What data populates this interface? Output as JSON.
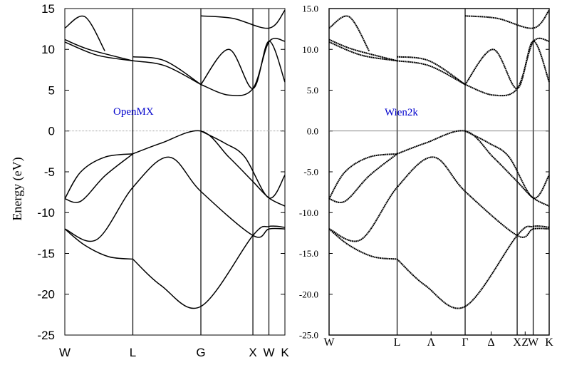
{
  "chart_data": [
    {
      "type": "line",
      "panel": "left",
      "title": "",
      "annotation": "OpenMX",
      "annotation_color": "#0000cc",
      "ylabel": "Energy (eV)",
      "xlabel": "",
      "ylim": [
        -25,
        15
      ],
      "yticks": [
        15,
        10,
        5,
        0,
        -5,
        -10,
        -15,
        -20,
        -25
      ],
      "ytick_labels": [
        "15",
        "10",
        "5",
        "0",
        "-5",
        "-10",
        "-15",
        "-20",
        "-25"
      ],
      "kpoints": [
        "W",
        "L",
        "G",
        "X",
        "W",
        "K"
      ],
      "fermi_level": 0,
      "grid": false,
      "series": [
        {
          "x": [
            0,
            0.8,
            1.7,
            2.6,
            3.4,
            4.7,
            5.1,
            5.5
          ],
          "values": [
            -12.0,
            -13.3,
            -6.9,
            -3.2,
            -7.4,
            -12.8,
            -12.0,
            -12.0
          ]
        },
        {
          "x": [
            0,
            0.5,
            1.1,
            1.7
          ],
          "values": [
            -12.0,
            -14.0,
            -15.4,
            -15.7
          ]
        },
        {
          "x": [
            1.7,
            2.4,
            3.4,
            4.7,
            5.1,
            5.5
          ],
          "values": [
            -15.7,
            -18.9,
            -21.5,
            -12.8,
            -11.7,
            -11.8
          ]
        },
        {
          "x": [
            0,
            0.4,
            1.0,
            1.7
          ],
          "values": [
            -8.3,
            -5.0,
            -3.2,
            -2.8
          ]
        },
        {
          "x": [
            0,
            0.4,
            1.0,
            1.7
          ],
          "values": [
            -8.3,
            -8.6,
            -5.5,
            -2.8
          ]
        },
        {
          "x": [
            1.7,
            2.4,
            3.4,
            4.1,
            4.7,
            5.1,
            5.5
          ],
          "values": [
            -2.8,
            -1.5,
            0.0,
            -3.2,
            -6.2,
            -8.2,
            -9.2
          ]
        },
        {
          "x": [
            3.4,
            4.0,
            4.5,
            5.1,
            5.5
          ],
          "values": [
            0.0,
            -1.5,
            -3.2,
            -8.2,
            -5.4
          ]
        },
        {
          "x": [
            0,
            0.6,
            1.7
          ],
          "values": [
            11.2,
            10.0,
            8.6
          ]
        },
        {
          "x": [
            0,
            0.8,
            1.7
          ],
          "values": [
            10.9,
            9.3,
            8.6
          ]
        },
        {
          "x": [
            1.7,
            2.5,
            3.4
          ],
          "values": [
            8.6,
            8.0,
            5.7
          ]
        },
        {
          "x": [
            1.7,
            2.5,
            3.4
          ],
          "values": [
            9.1,
            8.6,
            5.7
          ]
        },
        {
          "x": [
            3.4,
            4.1,
            4.7,
            5.1,
            5.5
          ],
          "values": [
            5.7,
            4.4,
            5.2,
            10.9,
            11.0
          ]
        },
        {
          "x": [
            3.4,
            4.1,
            4.7,
            5.1,
            5.5
          ],
          "values": [
            5.7,
            10.0,
            5.2,
            11.0,
            6.0
          ]
        },
        {
          "x": [
            0,
            0.5,
            1.0
          ],
          "values": [
            12.6,
            14.0,
            9.8
          ]
        },
        {
          "x": [
            3.4,
            4.2,
            5.1,
            5.5
          ],
          "values": [
            14.1,
            13.8,
            12.6,
            14.8
          ]
        }
      ]
    },
    {
      "type": "line",
      "panel": "right",
      "title": "",
      "annotation": "Wien2k",
      "annotation_color": "#0000cc",
      "ylabel": "",
      "xlabel": "",
      "ylim": [
        -25,
        15
      ],
      "yticks": [
        15,
        10,
        5,
        0,
        -5,
        -10,
        -15,
        -20,
        -25
      ],
      "ytick_labels": [
        "15.0",
        "10.0",
        "5.0",
        "0.0",
        "-5.0",
        "-10.0",
        "-15.0",
        "-20.0",
        "-25.0"
      ],
      "kpoints": [
        "W",
        "L",
        "Λ",
        "Γ",
        "Δ",
        "X",
        "Z",
        "W",
        "K"
      ],
      "fermi_level": 0,
      "grid": false,
      "series": [
        {
          "x": [
            0,
            0.8,
            1.7,
            2.6,
            3.4,
            4.7,
            5.1,
            5.5
          ],
          "values": [
            -12.0,
            -13.3,
            -6.9,
            -3.2,
            -7.4,
            -12.8,
            -12.0,
            -12.0
          ]
        },
        {
          "x": [
            0,
            0.5,
            1.1,
            1.7
          ],
          "values": [
            -12.0,
            -14.0,
            -15.4,
            -15.7
          ]
        },
        {
          "x": [
            1.7,
            2.4,
            3.4,
            4.7,
            5.1,
            5.5
          ],
          "values": [
            -15.7,
            -18.9,
            -21.5,
            -12.8,
            -11.7,
            -11.8
          ]
        },
        {
          "x": [
            0,
            0.4,
            1.0,
            1.7
          ],
          "values": [
            -8.3,
            -5.0,
            -3.2,
            -2.8
          ]
        },
        {
          "x": [
            0,
            0.4,
            1.0,
            1.7
          ],
          "values": [
            -8.3,
            -8.6,
            -5.5,
            -2.8
          ]
        },
        {
          "x": [
            1.7,
            2.4,
            3.4,
            4.1,
            4.7,
            5.1,
            5.5
          ],
          "values": [
            -2.8,
            -1.5,
            0.0,
            -3.2,
            -6.2,
            -8.2,
            -9.2
          ]
        },
        {
          "x": [
            3.4,
            4.0,
            4.5,
            5.1,
            5.5
          ],
          "values": [
            0.0,
            -1.5,
            -3.2,
            -8.2,
            -5.4
          ]
        },
        {
          "x": [
            0,
            0.6,
            1.7
          ],
          "values": [
            11.2,
            10.0,
            8.6
          ]
        },
        {
          "x": [
            0,
            0.8,
            1.7
          ],
          "values": [
            10.9,
            9.3,
            8.6
          ]
        },
        {
          "x": [
            1.7,
            2.5,
            3.4
          ],
          "values": [
            8.6,
            8.0,
            5.7
          ]
        },
        {
          "x": [
            1.7,
            2.5,
            3.4
          ],
          "values": [
            9.1,
            8.6,
            5.7
          ]
        },
        {
          "x": [
            3.4,
            4.1,
            4.7,
            5.1,
            5.5
          ],
          "values": [
            5.7,
            4.4,
            5.2,
            10.9,
            11.0
          ]
        },
        {
          "x": [
            3.4,
            4.1,
            4.7,
            5.1,
            5.5
          ],
          "values": [
            5.7,
            10.0,
            5.2,
            11.0,
            6.0
          ]
        },
        {
          "x": [
            0,
            0.5,
            1.0
          ],
          "values": [
            12.6,
            14.0,
            9.8
          ]
        },
        {
          "x": [
            3.4,
            4.2,
            5.1,
            5.5
          ],
          "values": [
            14.1,
            13.8,
            12.6,
            14.8
          ]
        }
      ]
    }
  ]
}
